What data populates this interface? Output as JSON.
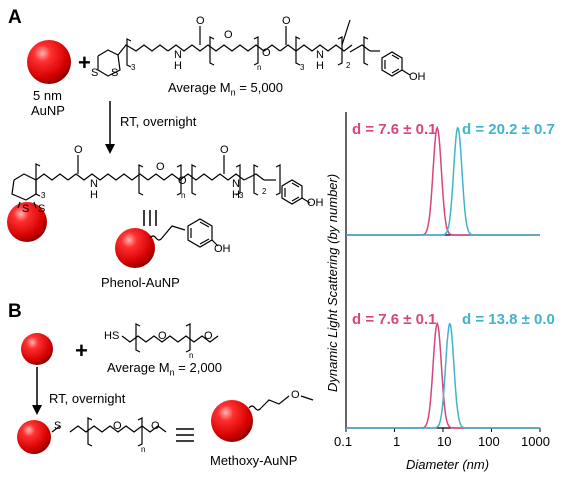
{
  "panel_a": {
    "label": "A",
    "np_label_line1": "5 nm",
    "np_label_line2": "AuNP",
    "plus": "+",
    "reagent_mn": "Average M",
    "reagent_mn_sub": "n",
    "reagent_mn_value": " = 5,000",
    "reaction_conditions": "RT, overnight",
    "equivalence_symbol": "|||",
    "product_name": "Phenol-AuNP"
  },
  "panel_b": {
    "label": "B",
    "plus": "+",
    "reagent_mn": "Average M",
    "reagent_mn_sub": "n",
    "reagent_mn_value": " = 2,000",
    "reaction_conditions": "RT, overnight",
    "equivalence_symbol": "≡",
    "product_name": "Methoxy-AuNP"
  },
  "chem_labels": {
    "S": "S",
    "O": "O",
    "NH": "N",
    "H": "H",
    "OH": "OH",
    "HS": "HS",
    "sub3": "3",
    "sub2": "2",
    "subn": "n"
  },
  "chart": {
    "ylabel": "Dynamic Light Scattering (by number)",
    "xlabel": "Diameter (nm)",
    "xticks": [
      "0.1",
      "1",
      "10",
      "100",
      "1000"
    ],
    "top_label_magenta": "d = 7.6 ± 0.1",
    "top_label_cyan": "d = 20.2 ± 0.7",
    "bottom_label_magenta": "d = 7.6 ± 0.1",
    "bottom_label_cyan": "d = 13.8 ± 0.0"
  },
  "chart_data": [
    {
      "type": "line",
      "ylabel": "Dynamic Light Scattering (by number)",
      "xscale": "log",
      "xlim": [
        0.1,
        1000
      ],
      "series": [
        {
          "name": "d = 7.6 ± 0.1",
          "color": "#d6457f",
          "peak_x": 7.6,
          "spread_decades": 0.085
        },
        {
          "name": "d = 20.2 ± 0.7",
          "color": "#42b3cf",
          "peak_x": 20.2,
          "spread_decades": 0.085
        }
      ]
    },
    {
      "type": "line",
      "xlabel": "Diameter (nm)",
      "ylabel": "Dynamic Light Scattering (by number)",
      "xscale": "log",
      "xlim": [
        0.1,
        1000
      ],
      "xticks": [
        0.1,
        1,
        10,
        100,
        1000
      ],
      "series": [
        {
          "name": "d = 7.6 ± 0.1",
          "color": "#d6457f",
          "peak_x": 7.6,
          "spread_decades": 0.085
        },
        {
          "name": "d = 13.8 ± 0.0",
          "color": "#42b3cf",
          "peak_x": 13.8,
          "spread_decades": 0.085
        }
      ]
    }
  ]
}
